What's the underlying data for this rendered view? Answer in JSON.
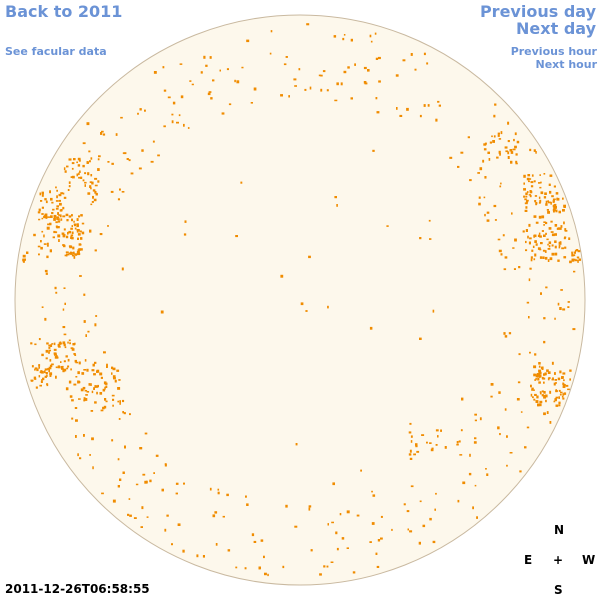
{
  "nav": {
    "back_year": "Back to 2011",
    "facular": "See facular data",
    "prev_day": "Previous day",
    "next_day": "Next day",
    "prev_hour": "Previous hour",
    "next_hour": "Next hour"
  },
  "compass": {
    "north": "N",
    "east": "E",
    "center": "+",
    "west": "W",
    "south": "S"
  },
  "timestamp": "2011-12-26T06:58:55",
  "colors": {
    "link": "#6b93d6",
    "disk_fill": "#fdf8ec",
    "disk_edge": "#c9b9a0",
    "feature": "#f08c00"
  }
}
